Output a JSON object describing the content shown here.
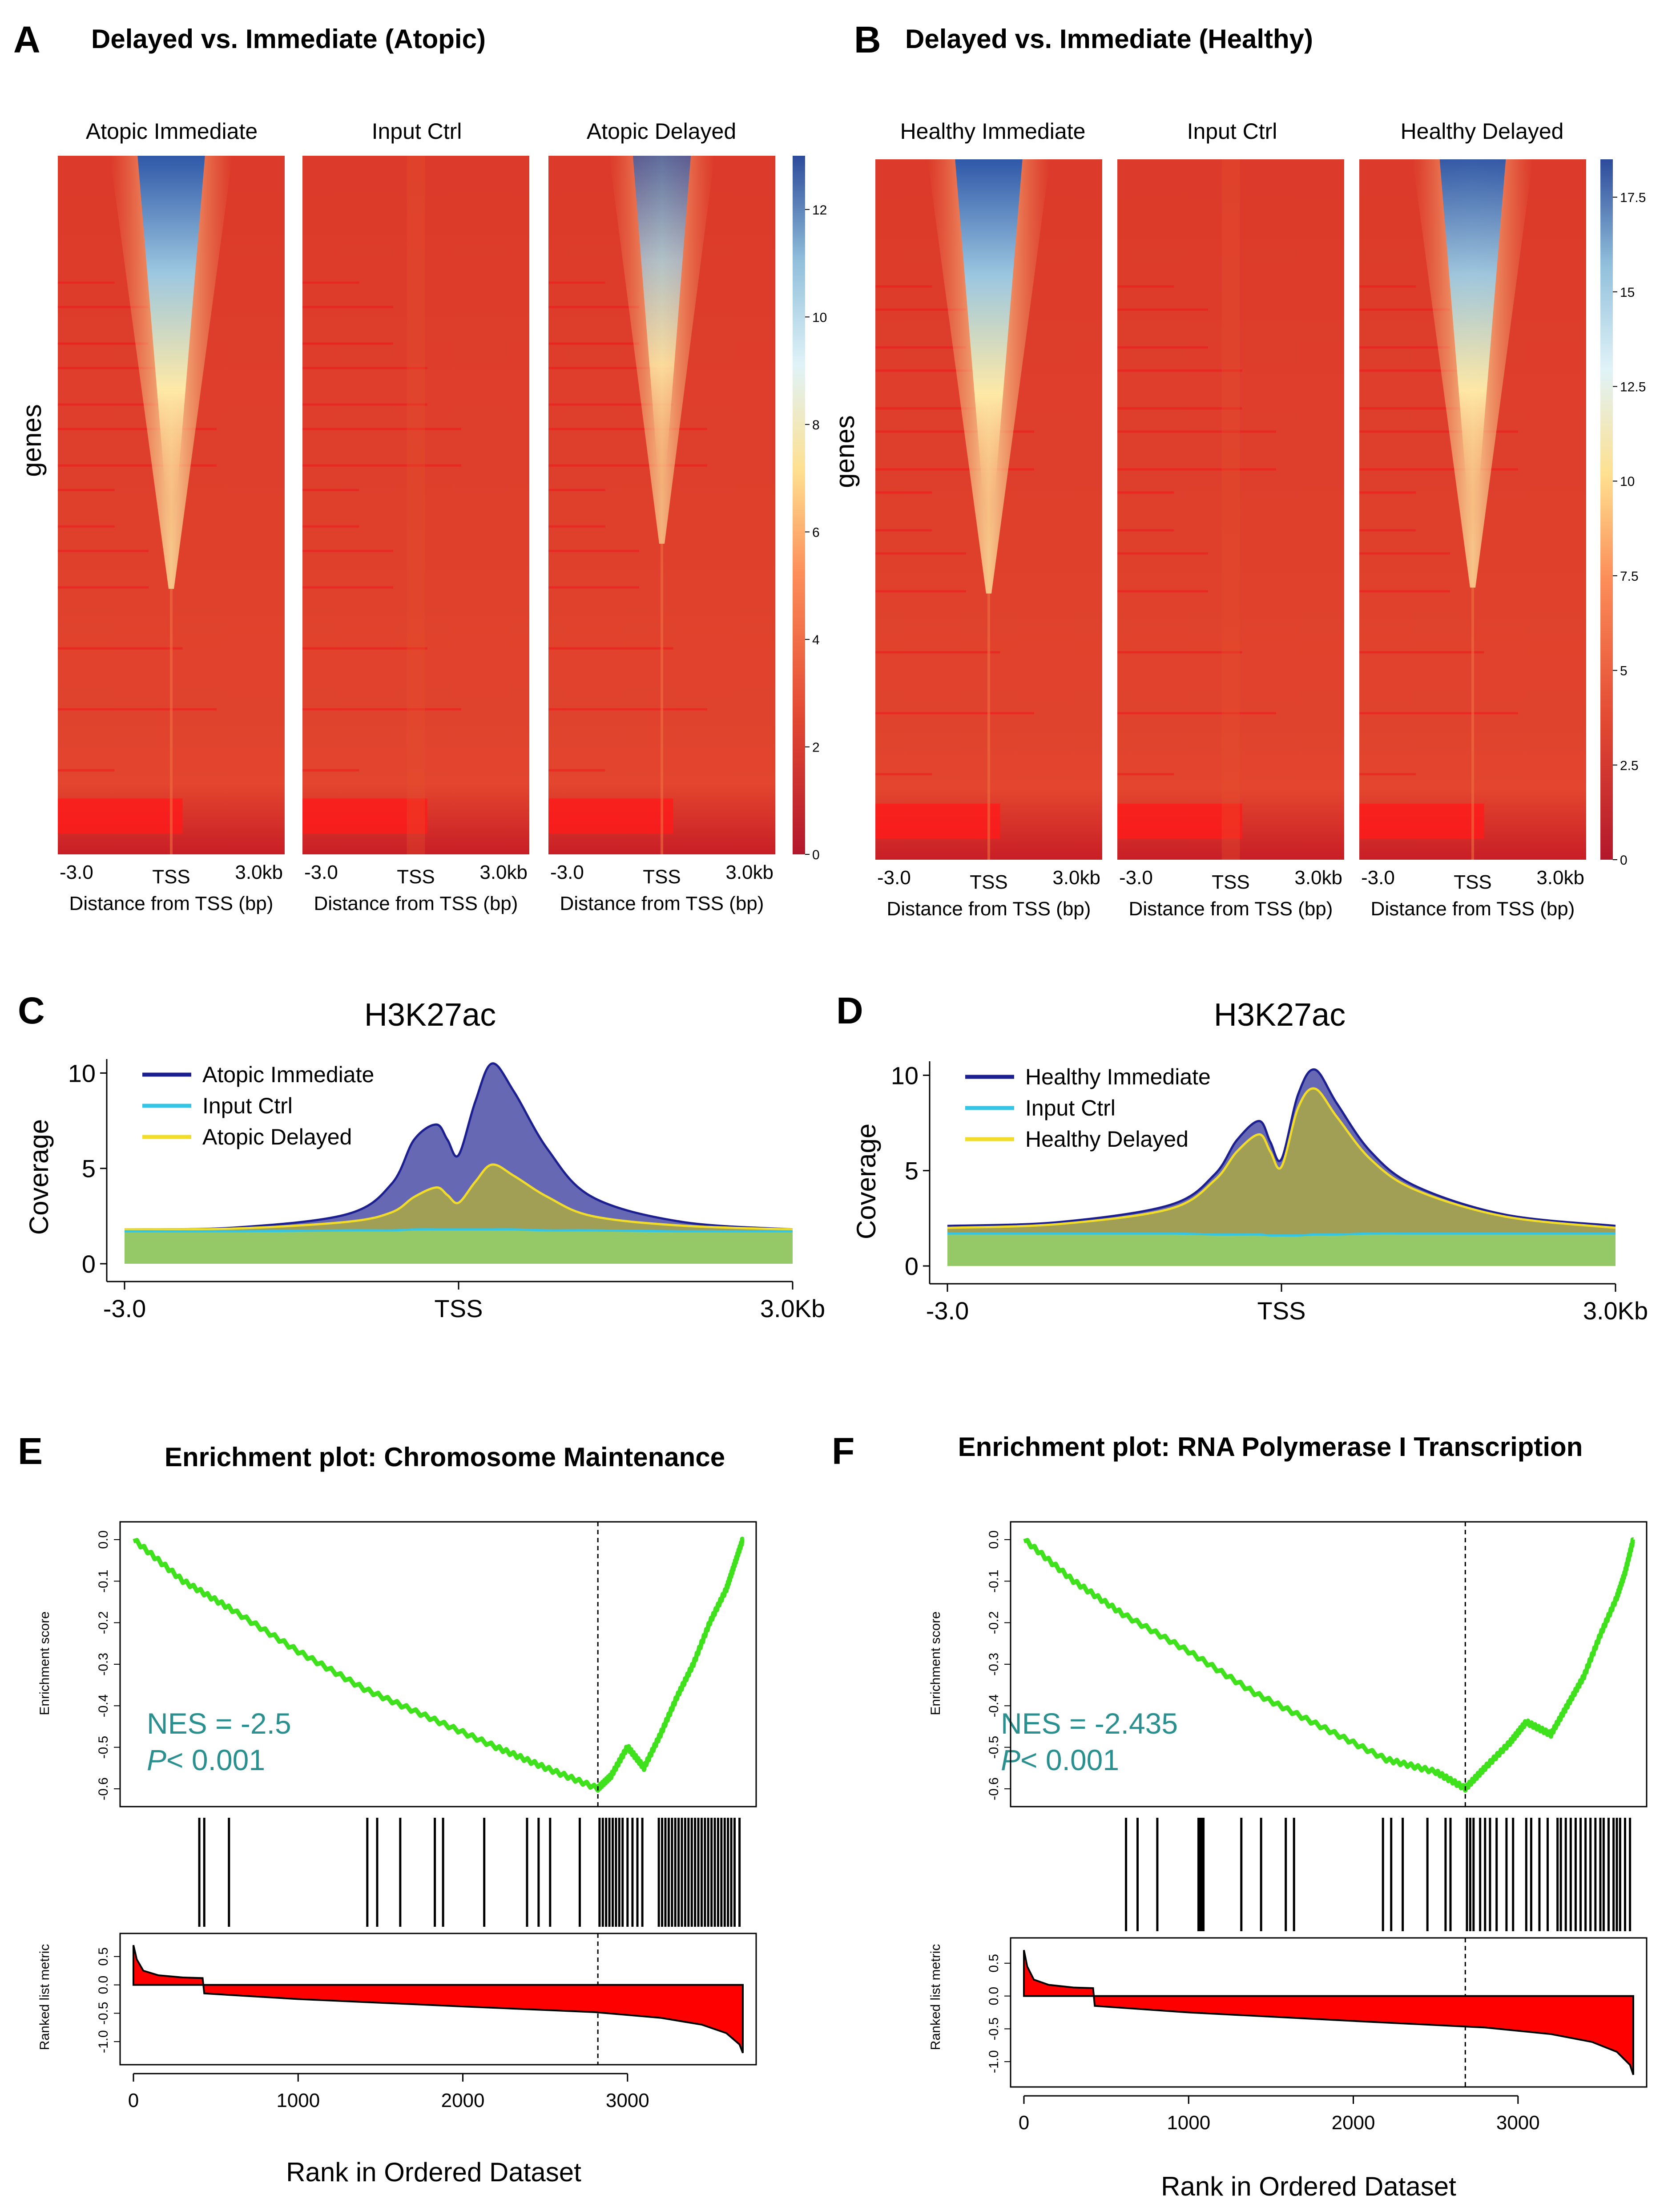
{
  "colors": {
    "heat_low": "#b2182b",
    "heat_mid": "#fee090",
    "heat_high": "#2c4a9a",
    "immediate": "#1c1f8f",
    "input": "#33c5e5",
    "delayed": "#f2dc2a",
    "green": "#95c867",
    "gsea_line": "#3ee11c",
    "metric_fill": "#ff0000",
    "nes_text": "#2a8f8f"
  },
  "panels": {
    "A": {
      "label": "A",
      "title": "Delayed vs. Immediate (Atopic)",
      "heatmaps": [
        {
          "title": "Atopic Immediate",
          "signal": 1.0
        },
        {
          "title": "Input Ctrl",
          "signal": 0.0
        },
        {
          "title": "Atopic Delayed",
          "signal": 0.62
        }
      ],
      "x_ticks": [
        "-3.0",
        "TSS",
        "3.0kb"
      ],
      "x_label": "Distance from TSS (bp)",
      "y_label": "genes",
      "colorbar_ticks": [
        "12",
        "10",
        "8",
        "6",
        "4",
        "2",
        "0"
      ],
      "colorbar_max": 13
    },
    "B": {
      "label": "B",
      "title": "Delayed vs. Immediate (Healthy)",
      "heatmaps": [
        {
          "title": "Healthy Immediate",
          "signal": 1.0
        },
        {
          "title": "Input Ctrl",
          "signal": 0.0
        },
        {
          "title": "Healthy Delayed",
          "signal": 0.95
        }
      ],
      "x_ticks": [
        "-3.0",
        "TSS",
        "3.0kb"
      ],
      "x_label": "Distance from TSS (bp)",
      "y_label": "genes",
      "colorbar_ticks": [
        "17.5",
        "15",
        "12.5",
        "10",
        "7.5",
        "5",
        "2.5",
        "0"
      ],
      "colorbar_max": 18.5
    },
    "C": {
      "label": "C",
      "y_label": "Coverage",
      "x_ticks": [
        "-3.0",
        "TSS",
        "3.0Kb"
      ]
    },
    "D": {
      "label": "D",
      "y_label": "Coverage",
      "x_ticks": [
        "-3.0",
        "TSS",
        "3.0Kb"
      ]
    },
    "E": {
      "label": "E",
      "title": "Enrichment plot: Chromosome Maintenance",
      "es_label": "Enrichment score",
      "metric_label": "Ranked list metric",
      "x_label": "Rank in Ordered Dataset",
      "nes": "NES = -2.5",
      "p_italic": "P",
      "p_rest": "< 0.001"
    },
    "F": {
      "label": "F",
      "title": "Enrichment plot: RNA Polymerase I Transcription",
      "es_label": "Enrichment score",
      "metric_label": "Ranked list metric",
      "x_label": "Rank in Ordered Dataset",
      "nes": "NES = -2.435",
      "p_italic": "P",
      "p_rest": "< 0.001"
    }
  },
  "chart_data": [
    {
      "id": "C",
      "type": "area",
      "title": "H3K27ac",
      "xlabel": "",
      "ylabel": "Coverage",
      "x_ticks": [
        "-3.0",
        "TSS",
        "3.0Kb"
      ],
      "xlim": [
        -3000,
        3000
      ],
      "ylim": [
        0,
        10.5
      ],
      "y_ticks": [
        0,
        5,
        10
      ],
      "legend": "top-left",
      "x": [
        -3000,
        -2000,
        -1000,
        -600,
        -400,
        -200,
        -100,
        0,
        150,
        300,
        500,
        800,
        1200,
        2000,
        3000
      ],
      "series": [
        {
          "name": "Atopic Immediate",
          "values": [
            1.8,
            1.9,
            2.6,
            4.2,
            6.5,
            7.3,
            6.5,
            5.7,
            8.5,
            10.5,
            9.0,
            6.0,
            3.5,
            2.2,
            1.8
          ]
        },
        {
          "name": "Input Ctrl",
          "values": [
            1.7,
            1.7,
            1.75,
            1.75,
            1.8,
            1.8,
            1.8,
            1.8,
            1.8,
            1.8,
            1.8,
            1.75,
            1.75,
            1.7,
            1.7
          ]
        },
        {
          "name": "Atopic Delayed",
          "values": [
            1.8,
            1.85,
            2.2,
            2.7,
            3.5,
            4.0,
            3.6,
            3.2,
            4.3,
            5.2,
            4.6,
            3.5,
            2.5,
            2.0,
            1.8
          ]
        }
      ]
    },
    {
      "id": "D",
      "type": "area",
      "title": "H3K27ac",
      "xlabel": "",
      "ylabel": "Coverage",
      "x_ticks": [
        "-3.0",
        "TSS",
        "3.0Kb"
      ],
      "xlim": [
        -3000,
        3000
      ],
      "ylim": [
        0,
        10.5
      ],
      "y_ticks": [
        0,
        5,
        10
      ],
      "legend": "top-left",
      "x": [
        -3000,
        -2000,
        -1000,
        -600,
        -400,
        -200,
        -100,
        0,
        150,
        300,
        500,
        800,
        1200,
        2000,
        3000
      ],
      "series": [
        {
          "name": "Healthy Immediate",
          "values": [
            2.1,
            2.3,
            3.2,
            4.8,
            6.6,
            7.6,
            6.5,
            5.6,
            9.0,
            10.3,
            8.5,
            6.0,
            4.2,
            2.7,
            2.1
          ]
        },
        {
          "name": "Input Ctrl",
          "values": [
            1.7,
            1.7,
            1.7,
            1.65,
            1.65,
            1.65,
            1.6,
            1.6,
            1.6,
            1.65,
            1.65,
            1.7,
            1.7,
            1.7,
            1.7
          ]
        },
        {
          "name": "Healthy Delayed",
          "values": [
            2.0,
            2.2,
            3.0,
            4.5,
            6.0,
            6.9,
            6.0,
            5.2,
            8.3,
            9.3,
            7.8,
            5.6,
            4.0,
            2.6,
            2.0
          ]
        }
      ]
    },
    {
      "id": "E",
      "type": "line",
      "title": "Enrichment plot: Chromosome Maintenance",
      "xlabel": "Rank in Ordered Dataset",
      "ylabel": "Enrichment score",
      "xlim": [
        0,
        3700
      ],
      "ylim": [
        -0.63,
        0.03
      ],
      "x_ticks": [
        0,
        1000,
        2000,
        3000
      ],
      "es_ticks": [
        "0.0",
        "-0.1",
        "-0.2",
        "-0.3",
        "-0.4",
        "-0.5",
        "-0.6"
      ],
      "metric_ticks": [
        "0.5",
        "0.0",
        "-0.5",
        "-1.0"
      ],
      "metric_ylim": [
        -1.25,
        0.75
      ],
      "leading_edge_rank": 2820,
      "es_x": [
        0,
        300,
        600,
        1000,
        1400,
        1800,
        2200,
        2500,
        2820,
        2900,
        3000,
        3100,
        3200,
        3300,
        3400,
        3500,
        3600,
        3650,
        3700
      ],
      "es_y": [
        0.0,
        -0.1,
        -0.17,
        -0.27,
        -0.36,
        -0.43,
        -0.5,
        -0.55,
        -0.6,
        -0.57,
        -0.5,
        -0.55,
        -0.47,
        -0.38,
        -0.3,
        -0.2,
        -0.12,
        -0.06,
        0.0
      ],
      "hits": [
        400,
        430,
        580,
        1420,
        1480,
        1620,
        1830,
        1880,
        2130,
        2390,
        2460,
        2530,
        2710,
        2830,
        2850,
        2870,
        2890,
        2910,
        2930,
        2950,
        2970,
        3000,
        3030,
        3060,
        3090,
        3190,
        3210,
        3230,
        3250,
        3270,
        3290,
        3310,
        3330,
        3350,
        3370,
        3390,
        3410,
        3430,
        3450,
        3470,
        3490,
        3510,
        3530,
        3550,
        3570,
        3590,
        3610,
        3630,
        3650,
        3680
      ],
      "metric_x": [
        0,
        20,
        60,
        150,
        300,
        420,
        430,
        1000,
        2000,
        2800,
        3200,
        3450,
        3600,
        3680,
        3700
      ],
      "metric_y": [
        0.7,
        0.45,
        0.25,
        0.17,
        0.13,
        0.12,
        -0.15,
        -0.25,
        -0.38,
        -0.48,
        -0.58,
        -0.7,
        -0.85,
        -1.05,
        -1.2
      ]
    },
    {
      "id": "F",
      "type": "line",
      "title": "Enrichment plot: RNA Polymerase I Transcription",
      "xlabel": "Rank in Ordered Dataset",
      "ylabel": "Enrichment score",
      "xlim": [
        0,
        3700
      ],
      "ylim": [
        -0.63,
        0.03
      ],
      "x_ticks": [
        0,
        1000,
        2000,
        3000
      ],
      "es_ticks": [
        "0.0",
        "-0.1",
        "-0.2",
        "-0.3",
        "-0.4",
        "-0.5",
        "-0.6"
      ],
      "metric_ticks": [
        "0.5",
        "0.0",
        "-0.5",
        "-1.0"
      ],
      "metric_ylim": [
        -1.25,
        0.75
      ],
      "leading_edge_rank": 2680,
      "es_x": [
        0,
        300,
        600,
        1000,
        1400,
        1800,
        2200,
        2500,
        2680,
        2800,
        2950,
        3050,
        3200,
        3300,
        3400,
        3500,
        3600,
        3650,
        3700
      ],
      "es_y": [
        0.0,
        -0.1,
        -0.18,
        -0.27,
        -0.37,
        -0.45,
        -0.53,
        -0.56,
        -0.6,
        -0.55,
        -0.49,
        -0.44,
        -0.47,
        -0.4,
        -0.33,
        -0.23,
        -0.14,
        -0.08,
        0.0
      ],
      "hits": [
        620,
        690,
        810,
        1060,
        1070,
        1080,
        1090,
        1320,
        1440,
        1590,
        1640,
        2180,
        2230,
        2300,
        2450,
        2560,
        2590,
        2690,
        2710,
        2730,
        2770,
        2800,
        2830,
        2870,
        2930,
        2970,
        3050,
        3080,
        3130,
        3180,
        3240,
        3260,
        3290,
        3320,
        3350,
        3380,
        3410,
        3440,
        3470,
        3500,
        3520,
        3550,
        3580,
        3600,
        3620,
        3650,
        3680
      ],
      "metric_x": [
        0,
        20,
        60,
        150,
        300,
        420,
        430,
        1000,
        2000,
        2800,
        3200,
        3450,
        3600,
        3680,
        3700
      ],
      "metric_y": [
        0.7,
        0.45,
        0.25,
        0.17,
        0.13,
        0.12,
        -0.15,
        -0.25,
        -0.38,
        -0.48,
        -0.58,
        -0.7,
        -0.85,
        -1.05,
        -1.2
      ]
    }
  ]
}
